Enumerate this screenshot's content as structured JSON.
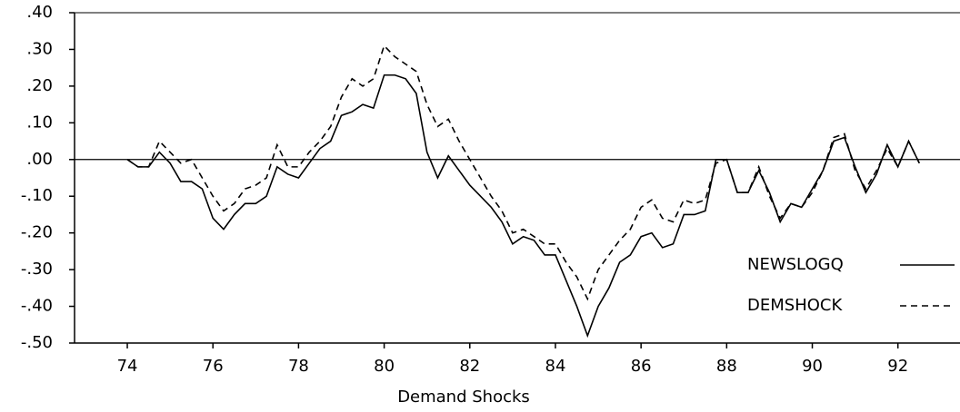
{
  "chart_data": {
    "type": "line",
    "xlabel": "Demand Shocks",
    "x": [
      74,
      74.25,
      74.5,
      74.75,
      75,
      75.25,
      75.5,
      75.75,
      76,
      76.25,
      76.5,
      76.75,
      77,
      77.25,
      77.5,
      77.75,
      78,
      78.25,
      78.5,
      78.75,
      79,
      79.25,
      79.5,
      79.75,
      80,
      80.25,
      80.5,
      80.75,
      81,
      81.25,
      81.5,
      81.75,
      82,
      82.25,
      82.5,
      82.75,
      83,
      83.25,
      83.5,
      83.75,
      84,
      84.25,
      84.5,
      84.75,
      85,
      85.25,
      85.5,
      85.75,
      86,
      86.25,
      86.5,
      86.75,
      87,
      87.25,
      87.5,
      87.75,
      88,
      88.25,
      88.5,
      88.75,
      89,
      89.25,
      89.5,
      89.75,
      90,
      90.25,
      90.5,
      90.75,
      91,
      91.25,
      91.5,
      91.75,
      92,
      92.25,
      92.5
    ],
    "series": [
      {
        "name": "NEWSLOGQ",
        "color": "#000000",
        "dash": false,
        "values": [
          0.0,
          -0.02,
          -0.02,
          0.02,
          -0.01,
          -0.06,
          -0.06,
          -0.08,
          -0.16,
          -0.19,
          -0.15,
          -0.12,
          -0.12,
          -0.1,
          -0.02,
          -0.04,
          -0.05,
          -0.01,
          0.03,
          0.05,
          0.12,
          0.13,
          0.15,
          0.14,
          0.23,
          0.23,
          0.22,
          0.18,
          0.02,
          -0.05,
          0.01,
          -0.03,
          -0.07,
          -0.1,
          -0.13,
          -0.17,
          -0.23,
          -0.21,
          -0.22,
          -0.26,
          -0.26,
          -0.33,
          -0.4,
          -0.48,
          -0.4,
          -0.35,
          -0.28,
          -0.26,
          -0.21,
          -0.2,
          -0.24,
          -0.23,
          -0.15,
          -0.15,
          -0.14,
          0.0,
          0.0,
          -0.09,
          -0.09,
          -0.03,
          -0.09,
          -0.17,
          -0.12,
          -0.13,
          -0.08,
          -0.03,
          0.05,
          0.06,
          -0.02,
          -0.09,
          -0.04,
          0.04,
          -0.02,
          0.05,
          -0.01
        ]
      },
      {
        "name": "DEMSHOCK",
        "color": "#000000",
        "dash": true,
        "values": [
          0.0,
          -0.02,
          -0.02,
          0.05,
          0.02,
          -0.01,
          0.0,
          -0.05,
          -0.1,
          -0.14,
          -0.12,
          -0.08,
          -0.07,
          -0.05,
          0.04,
          -0.02,
          -0.02,
          0.02,
          0.05,
          0.09,
          0.17,
          0.22,
          0.2,
          0.22,
          0.31,
          0.28,
          0.26,
          0.24,
          0.15,
          0.09,
          0.11,
          0.05,
          0.0,
          -0.05,
          -0.1,
          -0.14,
          -0.2,
          -0.19,
          -0.21,
          -0.23,
          -0.23,
          -0.28,
          -0.32,
          -0.38,
          -0.3,
          -0.26,
          -0.22,
          -0.19,
          -0.13,
          -0.11,
          -0.16,
          -0.17,
          -0.11,
          -0.12,
          -0.11,
          -0.01,
          0.0,
          -0.09,
          -0.09,
          -0.02,
          -0.1,
          -0.16,
          -0.12,
          -0.13,
          -0.09,
          -0.03,
          0.06,
          0.07,
          -0.03,
          -0.08,
          -0.03,
          0.03,
          -0.02,
          0.05,
          -0.01
        ]
      }
    ],
    "xlim": [
      73.15,
      93.45
    ],
    "xticks": [
      74,
      76,
      78,
      80,
      82,
      84,
      86,
      88,
      90,
      92
    ],
    "ylim": [
      -0.5,
      0.4
    ],
    "yticks": [
      {
        "value": 0.4,
        "label": ".40"
      },
      {
        "value": 0.3,
        "label": ".30"
      },
      {
        "value": 0.2,
        "label": ".20"
      },
      {
        "value": 0.1,
        "label": ".10"
      },
      {
        "value": 0,
        "label": ".00"
      },
      {
        "value": -0.1,
        "label": "-.10"
      },
      {
        "value": -0.2,
        "label": "-.20"
      },
      {
        "value": -0.3,
        "label": "-.30"
      },
      {
        "value": -0.4,
        "label": "-.40"
      },
      {
        "value": -0.5,
        "label": "-.50"
      }
    ],
    "zero_line": true
  }
}
